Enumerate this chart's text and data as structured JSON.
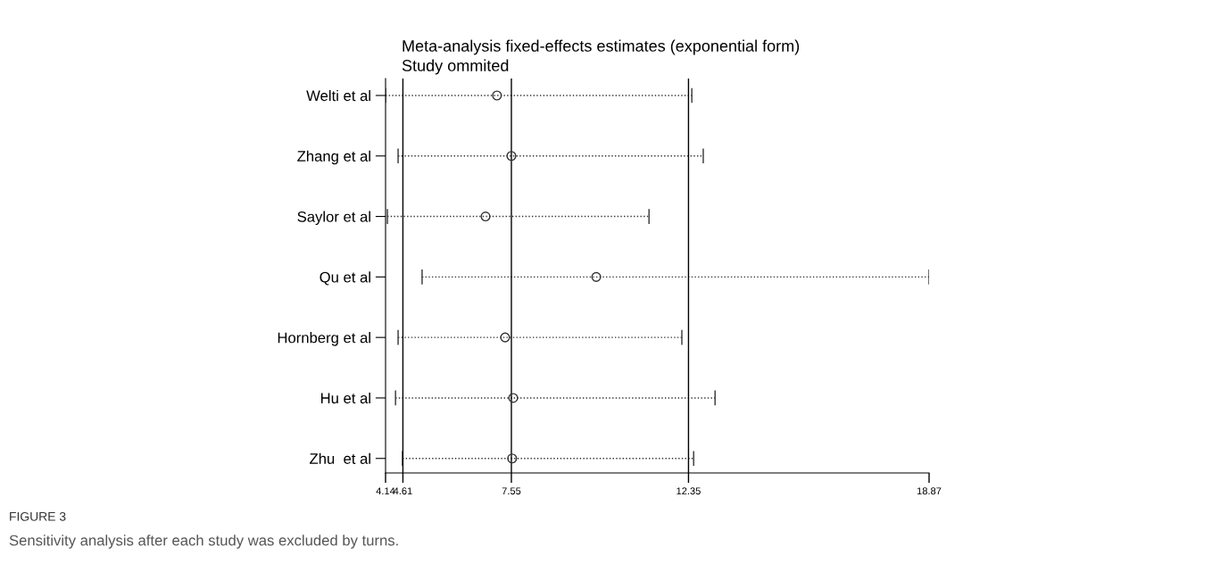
{
  "chart_data": {
    "type": "scatter",
    "orientation": "horizontal",
    "title": "Meta-analysis fixed-effects estimates (exponential form)",
    "subtitle": "Study ommited",
    "categories": [
      "Welti et al",
      "Zhang et al",
      "Saylor et al",
      "Qu et al",
      "Hornberg et al",
      "Hu et al",
      "Zhu  et al"
    ],
    "values": [
      7.16,
      7.55,
      6.85,
      9.85,
      7.38,
      7.6,
      7.57
    ],
    "errors": [
      [
        4.14,
        12.44
      ],
      [
        4.48,
        12.75
      ],
      [
        4.19,
        11.28
      ],
      [
        5.13,
        18.87
      ],
      [
        4.48,
        12.17
      ],
      [
        4.41,
        13.07
      ],
      [
        4.6,
        12.49
      ]
    ],
    "color": "#333333",
    "marker": "circle",
    "line_style": "dotted",
    "xlim": [
      4.14,
      18.87
    ],
    "xticks": [
      4.14,
      4.61,
      7.55,
      12.35,
      18.87
    ],
    "ref_lines": [
      {
        "axis": "x",
        "value": 4.61,
        "color": "#000000"
      },
      {
        "axis": "x",
        "value": 7.55,
        "color": "#000000"
      },
      {
        "axis": "x",
        "value": 12.35,
        "color": "#000000"
      }
    ],
    "grid": false,
    "annotations": [
      "FIGURE 3",
      "Sensitivity analysis after each study was excluded by turns."
    ]
  }
}
